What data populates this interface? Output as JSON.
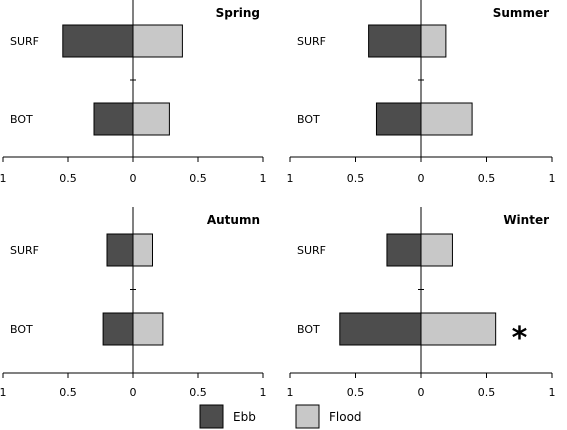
{
  "chart_data": [
    {
      "type": "bar",
      "title": "Spring",
      "categories": [
        "SURF",
        "BOT"
      ],
      "series": [
        {
          "name": "Ebb",
          "values": [
            0.54,
            0.3
          ]
        },
        {
          "name": "Flood",
          "values": [
            0.38,
            0.28
          ]
        }
      ],
      "xlim": [
        -1,
        1
      ],
      "xtick_labels": [
        "1",
        "0.5",
        "0",
        "0.5",
        "1"
      ],
      "annotations": []
    },
    {
      "type": "bar",
      "title": "Summer",
      "categories": [
        "SURF",
        "BOT"
      ],
      "series": [
        {
          "name": "Ebb",
          "values": [
            0.4,
            0.34
          ]
        },
        {
          "name": "Flood",
          "values": [
            0.19,
            0.39
          ]
        }
      ],
      "xlim": [
        -1,
        1
      ],
      "xtick_labels": [
        "1",
        "0.5",
        "0",
        "0.5",
        "1"
      ],
      "annotations": []
    },
    {
      "type": "bar",
      "title": "Autumn",
      "categories": [
        "SURF",
        "BOT"
      ],
      "series": [
        {
          "name": "Ebb",
          "values": [
            0.2,
            0.23
          ]
        },
        {
          "name": "Flood",
          "values": [
            0.15,
            0.23
          ]
        }
      ],
      "xlim": [
        -1,
        1
      ],
      "xtick_labels": [
        "1",
        "0.5",
        "0",
        "0.5",
        "1"
      ],
      "annotations": []
    },
    {
      "type": "bar",
      "title": "Winter",
      "categories": [
        "SURF",
        "BOT"
      ],
      "series": [
        {
          "name": "Ebb",
          "values": [
            0.26,
            0.62
          ]
        },
        {
          "name": "Flood",
          "values": [
            0.24,
            0.57
          ]
        }
      ],
      "xlim": [
        -1,
        1
      ],
      "xtick_labels": [
        "1",
        "0.5",
        "0",
        "0.5",
        "1"
      ],
      "annotations": [
        {
          "category": "BOT",
          "text": "*"
        }
      ]
    }
  ],
  "legend": [
    {
      "label": "Ebb",
      "color": "#4d4d4d"
    },
    {
      "label": "Flood",
      "color": "#c8c8c8"
    }
  ],
  "colors": {
    "ebb": "#4d4d4d",
    "flood": "#c8c8c8"
  }
}
